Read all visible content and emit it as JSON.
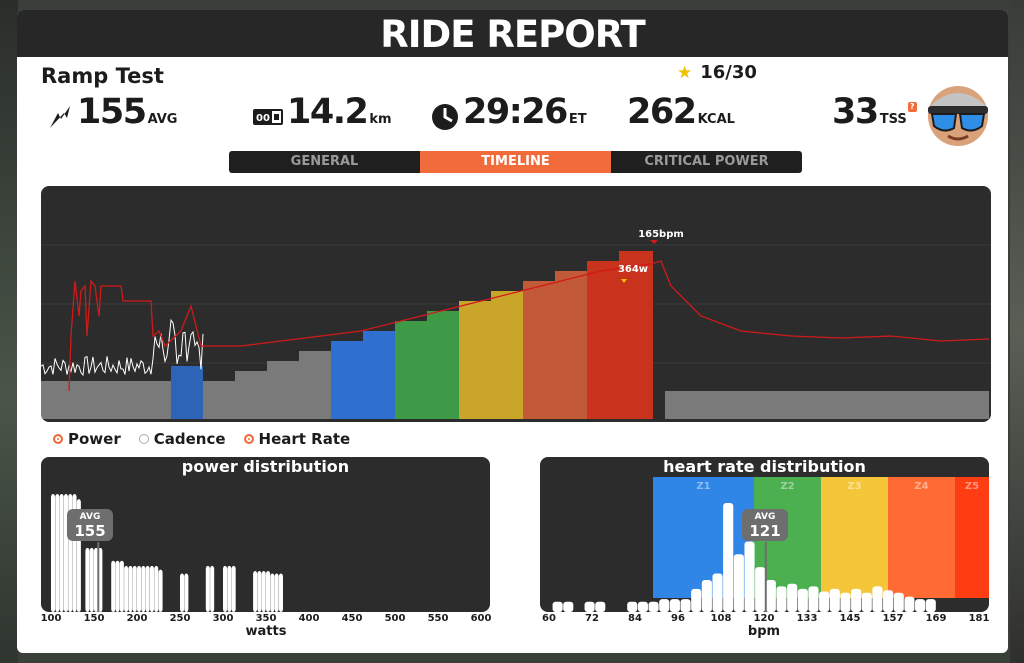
{
  "header": {
    "title": "RIDE REPORT"
  },
  "workout": {
    "name": "Ramp Test",
    "stars": "16/30"
  },
  "stats": {
    "power_avg": "155",
    "power_unit": "AVG",
    "distance": "14.2",
    "distance_unit": "km",
    "time": "29:26",
    "time_unit": "ET",
    "calories": "262",
    "calories_unit": "KCAL",
    "tss": "33",
    "tss_unit": "TSS",
    "tss_help": "?"
  },
  "tabs": [
    {
      "label": "GENERAL"
    },
    {
      "label": "TIMELINE"
    },
    {
      "label": "CRITICAL POWER"
    }
  ],
  "timeline": {
    "peak_hr_label": "165bpm",
    "peak_power_label": "364w",
    "zone_colors": [
      "#7a7a7a",
      "#2f6fd0",
      "#3f9a47",
      "#c9a52a",
      "#c25a38",
      "#c9321d"
    ]
  },
  "legend": {
    "power": "Power",
    "cadence": "Cadence",
    "heart_rate": "Heart Rate"
  },
  "power_distribution": {
    "title": "power distribution",
    "xlabel": "watts",
    "avg_label": "AVG",
    "avg_value": "155",
    "ticks": [
      "100",
      "150",
      "200",
      "250",
      "300",
      "350",
      "400",
      "450",
      "500",
      "550",
      "600"
    ]
  },
  "hr_distribution": {
    "title": "heart rate distribution",
    "xlabel": "bpm",
    "avg_label": "AVG",
    "avg_value": "121",
    "ticks": [
      "60",
      "72",
      "84",
      "96",
      "108",
      "120",
      "133",
      "145",
      "157",
      "169",
      "181"
    ],
    "zones": [
      {
        "label": "Z1",
        "color": "#2f86e6"
      },
      {
        "label": "Z2",
        "color": "#4caf50"
      },
      {
        "label": "Z3",
        "color": "#f5c63a"
      },
      {
        "label": "Z4",
        "color": "#ff6b33"
      },
      {
        "label": "Z5",
        "color": "#ff3d12"
      }
    ]
  },
  "chart_data": [
    {
      "type": "bar",
      "title": "power distribution",
      "xlabel": "watts",
      "x_range": [
        100,
        600
      ],
      "x": [
        100,
        105,
        110,
        115,
        120,
        125,
        130,
        135,
        140,
        145,
        150,
        155,
        160,
        165,
        170,
        175,
        180,
        185,
        190,
        195,
        200,
        205,
        210,
        215,
        220,
        225,
        230,
        235,
        240,
        245,
        250,
        255,
        260,
        265,
        270,
        275,
        280,
        285,
        290,
        295,
        300,
        305,
        310,
        315,
        320,
        325,
        330,
        335,
        340,
        345,
        350,
        355,
        360,
        365
      ],
      "values": [
        92,
        92,
        92,
        92,
        92,
        92,
        88,
        0,
        50,
        50,
        50,
        50,
        0,
        0,
        40,
        40,
        40,
        36,
        36,
        36,
        36,
        36,
        36,
        36,
        36,
        33,
        0,
        0,
        0,
        0,
        30,
        30,
        0,
        0,
        0,
        0,
        36,
        36,
        0,
        0,
        36,
        36,
        36,
        0,
        0,
        0,
        0,
        32,
        32,
        32,
        32,
        30,
        30,
        30
      ],
      "avg": 155
    },
    {
      "type": "bar",
      "title": "heart rate distribution",
      "xlabel": "bpm",
      "x_range": [
        60,
        181
      ],
      "x": [
        61,
        64,
        67,
        70,
        73,
        76,
        79,
        82,
        85,
        88,
        91,
        94,
        97,
        100,
        103,
        106,
        109,
        112,
        115,
        118,
        121,
        124,
        127,
        130,
        133,
        136,
        139,
        142,
        145,
        148,
        151,
        154,
        157,
        160,
        163,
        166
      ],
      "values": [
        8,
        8,
        0,
        8,
        8,
        0,
        0,
        8,
        8,
        8,
        10,
        10,
        10,
        18,
        25,
        30,
        85,
        45,
        55,
        35,
        25,
        20,
        22,
        18,
        20,
        16,
        18,
        15,
        18,
        15,
        20,
        17,
        15,
        12,
        10,
        10
      ],
      "avg": 121
    }
  ]
}
